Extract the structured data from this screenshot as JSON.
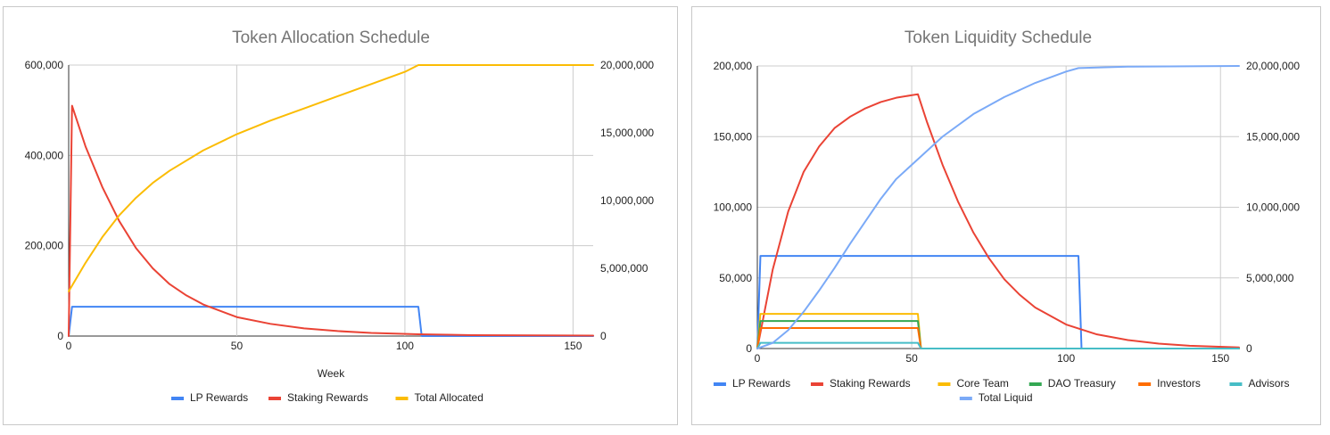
{
  "chart_data": [
    {
      "type": "line",
      "title": "Token Allocation Schedule",
      "xlabel": "Week",
      "ylabel": "",
      "ylabel_right": "",
      "xlim": [
        0,
        156
      ],
      "ylim": [
        0,
        600000
      ],
      "ylim_right": [
        0,
        20000000
      ],
      "x_ticks": [
        0,
        50,
        100,
        150
      ],
      "x_tick_labels": [
        "0",
        "50",
        "100",
        "150"
      ],
      "y_ticks": [
        0,
        200000,
        400000,
        600000
      ],
      "y_tick_labels": [
        "0",
        "200,000",
        "400,000",
        "600,000"
      ],
      "y_ticks_right": [
        0,
        5000000,
        10000000,
        15000000,
        20000000
      ],
      "y_tick_labels_right": [
        "0",
        "5,000,000",
        "10,000,000",
        "15,000,000",
        "20,000,000"
      ],
      "grid": true,
      "legend_position": "bottom",
      "series": [
        {
          "name": "LP Rewards",
          "color": "#4285f4",
          "axis": "left",
          "points": [
            [
              0,
              0
            ],
            [
              1,
              65000
            ],
            [
              104,
              65000
            ],
            [
              105,
              0
            ],
            [
              156,
              0
            ]
          ]
        },
        {
          "name": "Staking Rewards",
          "color": "#ea4335",
          "axis": "left",
          "points": [
            [
              0,
              0
            ],
            [
              1,
              510000
            ],
            [
              5,
              420000
            ],
            [
              10,
              330000
            ],
            [
              15,
              255000
            ],
            [
              20,
              195000
            ],
            [
              25,
              150000
            ],
            [
              30,
              115000
            ],
            [
              35,
              90000
            ],
            [
              40,
              70000
            ],
            [
              50,
              42000
            ],
            [
              60,
              27000
            ],
            [
              70,
              17000
            ],
            [
              80,
              11000
            ],
            [
              90,
              7000
            ],
            [
              104,
              4000
            ],
            [
              120,
              2000
            ],
            [
              156,
              1000
            ]
          ]
        },
        {
          "name": "Total Allocated",
          "color": "#fbbc04",
          "axis": "right",
          "points": [
            [
              0,
              3300000
            ],
            [
              5,
              5400000
            ],
            [
              10,
              7300000
            ],
            [
              15,
              8900000
            ],
            [
              20,
              10200000
            ],
            [
              25,
              11300000
            ],
            [
              30,
              12200000
            ],
            [
              40,
              13700000
            ],
            [
              50,
              14900000
            ],
            [
              60,
              15900000
            ],
            [
              70,
              16800000
            ],
            [
              80,
              17700000
            ],
            [
              90,
              18600000
            ],
            [
              100,
              19500000
            ],
            [
              104,
              20000000
            ],
            [
              156,
              20000000
            ]
          ]
        }
      ]
    },
    {
      "type": "line",
      "title": "Token Liquidity Schedule",
      "xlabel": "",
      "ylabel": "",
      "ylabel_right": "",
      "xlim": [
        0,
        156
      ],
      "ylim": [
        0,
        200000
      ],
      "ylim_right": [
        0,
        20000000
      ],
      "x_ticks": [
        0,
        50,
        100,
        150
      ],
      "x_tick_labels": [
        "0",
        "50",
        "100",
        "150"
      ],
      "y_ticks": [
        0,
        50000,
        100000,
        150000,
        200000
      ],
      "y_tick_labels": [
        "0",
        "50,000",
        "100,000",
        "150,000",
        "200,000"
      ],
      "y_ticks_right": [
        0,
        5000000,
        10000000,
        15000000,
        20000000
      ],
      "y_tick_labels_right": [
        "0",
        "5,000,000",
        "10,000,000",
        "15,000,000",
        "20,000,000"
      ],
      "grid": true,
      "legend_position": "bottom",
      "series": [
        {
          "name": "LP Rewards",
          "color": "#4285f4",
          "axis": "left",
          "points": [
            [
              0,
              0
            ],
            [
              1,
              65500
            ],
            [
              104,
              65500
            ],
            [
              105,
              0
            ],
            [
              156,
              0
            ]
          ]
        },
        {
          "name": "Staking Rewards",
          "color": "#ea4335",
          "axis": "left",
          "points": [
            [
              0,
              0
            ],
            [
              5,
              56000
            ],
            [
              10,
              97000
            ],
            [
              15,
              125000
            ],
            [
              20,
              143000
            ],
            [
              25,
              156000
            ],
            [
              30,
              164000
            ],
            [
              35,
              170000
            ],
            [
              40,
              174500
            ],
            [
              45,
              177500
            ],
            [
              52,
              180000
            ],
            [
              55,
              160000
            ],
            [
              60,
              130000
            ],
            [
              65,
              104000
            ],
            [
              70,
              82000
            ],
            [
              75,
              64000
            ],
            [
              80,
              49000
            ],
            [
              85,
              38000
            ],
            [
              90,
              29000
            ],
            [
              100,
              17000
            ],
            [
              110,
              10000
            ],
            [
              120,
              6000
            ],
            [
              130,
              3500
            ],
            [
              140,
              2000
            ],
            [
              156,
              800
            ]
          ]
        },
        {
          "name": "Core Team",
          "color": "#fbbc04",
          "axis": "left",
          "points": [
            [
              0,
              0
            ],
            [
              1,
              24500
            ],
            [
              52,
              24500
            ],
            [
              53,
              0
            ],
            [
              156,
              0
            ]
          ]
        },
        {
          "name": "DAO Treasury",
          "color": "#34a853",
          "axis": "left",
          "points": [
            [
              0,
              0
            ],
            [
              1,
              19500
            ],
            [
              52,
              19500
            ],
            [
              53,
              0
            ],
            [
              156,
              0
            ]
          ]
        },
        {
          "name": "Investors",
          "color": "#ff6d01",
          "axis": "left",
          "points": [
            [
              0,
              0
            ],
            [
              1,
              14500
            ],
            [
              52,
              14500
            ],
            [
              53,
              0
            ],
            [
              156,
              0
            ]
          ]
        },
        {
          "name": "Advisors",
          "color": "#46bdc6",
          "axis": "left",
          "points": [
            [
              0,
              0
            ],
            [
              1,
              4000
            ],
            [
              52,
              4000
            ],
            [
              53,
              0
            ],
            [
              156,
              0
            ]
          ]
        },
        {
          "name": "Total Liquid",
          "color": "#7baaf7",
          "axis": "right",
          "points": [
            [
              0,
              0
            ],
            [
              5,
              400000
            ],
            [
              10,
              1300000
            ],
            [
              15,
              2600000
            ],
            [
              20,
              4100000
            ],
            [
              25,
              5700000
            ],
            [
              30,
              7400000
            ],
            [
              35,
              9000000
            ],
            [
              40,
              10600000
            ],
            [
              45,
              12000000
            ],
            [
              52,
              13400000
            ],
            [
              60,
              15000000
            ],
            [
              70,
              16600000
            ],
            [
              80,
              17800000
            ],
            [
              90,
              18800000
            ],
            [
              100,
              19600000
            ],
            [
              104,
              19850000
            ],
            [
              120,
              19950000
            ],
            [
              156,
              20000000
            ]
          ]
        }
      ]
    }
  ]
}
